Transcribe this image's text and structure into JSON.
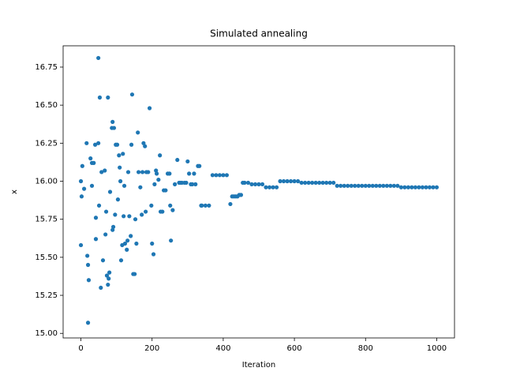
{
  "chart_data": {
    "type": "scatter",
    "title": "Simulated annealing",
    "x_label": "Iteration",
    "y_label": "x",
    "color": "#1f77b4",
    "x": [
      0,
      2,
      4,
      9,
      0,
      16,
      18,
      20,
      20,
      22,
      27,
      31,
      31,
      36,
      40,
      42,
      42,
      49,
      49,
      51,
      53,
      56,
      58,
      62,
      67,
      69,
      71,
      73,
      76,
      76,
      78,
      80,
      82,
      87,
      89,
      89,
      91,
      93,
      96,
      98,
      102,
      104,
      107,
      109,
      111,
      113,
      116,
      118,
      120,
      122,
      124,
      129,
      131,
      133,
      136,
      140,
      142,
      144,
      147,
      151,
      153,
      156,
      160,
      162,
      167,
      171,
      173,
      176,
      180,
      182,
      184,
      189,
      193,
      198,
      200,
      204,
      207,
      211,
      213,
      218,
      222,
      224,
      229,
      233,
      238,
      244,
      249,
      251,
      253,
      258,
      264,
      271,
      276,
      280,
      284,
      291,
      296,
      300,
      304,
      309,
      313,
      318,
      322,
      329,
      333,
      338,
      340,
      350,
      360,
      370,
      380,
      390,
      400,
      410,
      420,
      425,
      430,
      435,
      440,
      445,
      450,
      455,
      460,
      470,
      480,
      490,
      500,
      510,
      520,
      530,
      540,
      550,
      560,
      570,
      580,
      590,
      600,
      610,
      620,
      630,
      640,
      650,
      660,
      670,
      680,
      690,
      700,
      710,
      720,
      730,
      740,
      750,
      760,
      770,
      780,
      790,
      800,
      810,
      820,
      830,
      840,
      850,
      860,
      870,
      880,
      890,
      900,
      910,
      920,
      930,
      940,
      950,
      960,
      970,
      980,
      990,
      1000
    ],
    "y": [
      16.0,
      15.9,
      16.1,
      15.95,
      15.58,
      16.25,
      15.51,
      15.45,
      15.07,
      15.35,
      16.15,
      16.12,
      15.97,
      16.12,
      16.24,
      15.62,
      15.76,
      16.81,
      16.25,
      15.84,
      16.55,
      15.3,
      16.06,
      15.48,
      16.07,
      15.65,
      15.8,
      15.38,
      16.55,
      15.32,
      15.36,
      15.4,
      15.93,
      16.35,
      16.39,
      15.68,
      15.7,
      16.35,
      15.78,
      16.24,
      16.24,
      15.88,
      16.17,
      16.09,
      16.0,
      15.48,
      15.58,
      16.18,
      15.77,
      15.97,
      15.59,
      15.55,
      15.61,
      16.06,
      15.77,
      15.64,
      16.24,
      16.57,
      15.39,
      15.39,
      15.75,
      15.59,
      16.32,
      16.06,
      15.96,
      15.78,
      16.06,
      16.25,
      16.23,
      15.8,
      16.06,
      16.06,
      16.48,
      15.84,
      15.59,
      15.52,
      15.98,
      16.07,
      16.05,
      16.01,
      16.17,
      15.8,
      15.8,
      15.94,
      15.94,
      16.05,
      16.05,
      15.84,
      15.61,
      15.81,
      15.98,
      16.14,
      15.99,
      15.99,
      15.99,
      15.99,
      15.99,
      16.13,
      16.05,
      15.98,
      15.98,
      16.05,
      15.98,
      16.1,
      16.1,
      15.84,
      15.84,
      15.84,
      15.84,
      16.04,
      16.04,
      16.04,
      16.04,
      16.04,
      15.85,
      15.9,
      15.9,
      15.9,
      15.9,
      15.91,
      15.91,
      15.99,
      15.99,
      15.99,
      15.98,
      15.98,
      15.98,
      15.98,
      15.96,
      15.96,
      15.96,
      15.96,
      16.0,
      16.0,
      16.0,
      16.0,
      16.0,
      16.0,
      15.99,
      15.99,
      15.99,
      15.99,
      15.99,
      15.99,
      15.99,
      15.99,
      15.99,
      15.99,
      15.97,
      15.97,
      15.97,
      15.97,
      15.97,
      15.97,
      15.97,
      15.97,
      15.97,
      15.97,
      15.97,
      15.97,
      15.97,
      15.97,
      15.97,
      15.97,
      15.97,
      15.97,
      15.96,
      15.96,
      15.96,
      15.96,
      15.96,
      15.96,
      15.96,
      15.96,
      15.96,
      15.96,
      15.96
    ],
    "xlim": [
      -50,
      1050
    ],
    "ylim": [
      14.97,
      16.89
    ],
    "xticks": [
      0,
      200,
      400,
      600,
      800,
      1000
    ],
    "yticks": [
      {
        "value": 15,
        "label": "15.00"
      },
      {
        "value": 15.25,
        "label": "15.25"
      },
      {
        "value": 15.5,
        "label": "15.50"
      },
      {
        "value": 15.75,
        "label": "15.75"
      },
      {
        "value": 16,
        "label": "16.00"
      },
      {
        "value": 16.25,
        "label": "16.25"
      },
      {
        "value": 16.5,
        "label": "16.50"
      },
      {
        "value": 16.75,
        "label": "16.75"
      }
    ]
  }
}
